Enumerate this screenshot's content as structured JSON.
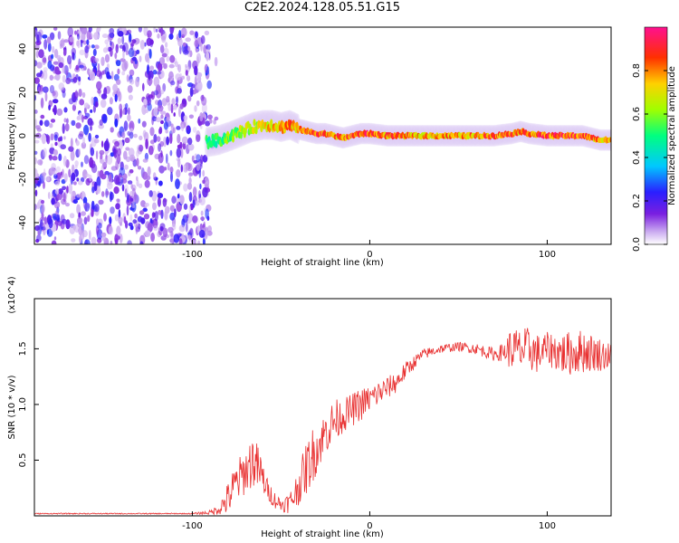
{
  "title": "C2E2.2024.128.05.51.G15",
  "chart_data": [
    {
      "type": "heatmap",
      "xlabel": "Height of straight line (km)",
      "ylabel": "Frequency (Hz)",
      "xlim": [
        -189,
        136
      ],
      "ylim": [
        -50,
        50
      ],
      "x_ticks": [
        -100,
        0,
        100
      ],
      "y_ticks": [
        -40,
        -20,
        0,
        20,
        40
      ],
      "grid": false,
      "colorbar": {
        "label": "Normalized spectral amplitude",
        "range": [
          0,
          1
        ],
        "ticks": [
          "0.0",
          "0.2",
          "0.4",
          "0.6",
          "0.8"
        ],
        "colors": [
          "#ffffff",
          "#c9a8f0",
          "#7a1fe0",
          "#2a1fff",
          "#00c8ff",
          "#00ff80",
          "#a0ff00",
          "#ffd000",
          "#ff3000",
          "#ff1090"
        ]
      },
      "noise_region_x": [
        -189,
        -90
      ],
      "ridge": {
        "x": [
          -92,
          -85,
          -78,
          -72,
          -66,
          -60,
          -55,
          -50,
          -45,
          -40,
          -35,
          -30,
          -25,
          -20,
          -15,
          -10,
          -5,
          0,
          10,
          20,
          30,
          40,
          50,
          60,
          70,
          80,
          85,
          90,
          100,
          110,
          120,
          125,
          130,
          136
        ],
        "freq": [
          -3,
          -2,
          0,
          2,
          4,
          5,
          5,
          4,
          5,
          3,
          2,
          1,
          1,
          0,
          -1,
          0,
          1,
          1,
          0,
          0,
          0,
          0,
          0,
          0,
          0,
          1,
          2,
          1,
          0,
          0,
          0,
          -1,
          -2,
          -2
        ],
        "amplitude": [
          0.55,
          0.6,
          0.65,
          0.7,
          0.72,
          0.75,
          0.8,
          0.82,
          0.85,
          0.85,
          0.88,
          0.9,
          0.9,
          0.92,
          0.9,
          0.92,
          0.93,
          0.95,
          0.9,
          0.88,
          0.85,
          0.85,
          0.85,
          0.88,
          0.9,
          0.92,
          0.9,
          0.92,
          0.95,
          0.95,
          0.93,
          0.9,
          0.88,
          0.85
        ]
      }
    },
    {
      "type": "line",
      "xlabel": "Height of straight line (km)",
      "ylabel": "SNR (10 * v/v)",
      "y_multiplier": "(x10^4)",
      "xlim": [
        -189,
        136
      ],
      "ylim": [
        0,
        1.95
      ],
      "x_ticks": [
        -100,
        0,
        100
      ],
      "y_ticks": [
        "0.5",
        "1.0",
        "1.5"
      ],
      "grid": false,
      "series": [
        {
          "color": "#e83030",
          "x": [
            -189,
            -150,
            -100,
            -90,
            -85,
            -80,
            -75,
            -70,
            -66,
            -62,
            -58,
            -54,
            -50,
            -45,
            -42,
            -38,
            -35,
            -32,
            -28,
            -25,
            -20,
            -15,
            -10,
            -5,
            0,
            5,
            10,
            15,
            20,
            25,
            30,
            40,
            50,
            60,
            70,
            75,
            80,
            85,
            90,
            95,
            100,
            110,
            120,
            130,
            136
          ],
          "base": [
            0.02,
            0.02,
            0.02,
            0.03,
            0.06,
            0.15,
            0.3,
            0.4,
            0.5,
            0.4,
            0.25,
            0.15,
            0.1,
            0.12,
            0.2,
            0.35,
            0.45,
            0.55,
            0.65,
            0.75,
            0.85,
            0.9,
            0.95,
            1.0,
            1.05,
            1.1,
            1.15,
            1.2,
            1.3,
            1.38,
            1.45,
            1.5,
            1.52,
            1.5,
            1.45,
            1.47,
            1.5,
            1.48,
            1.5,
            1.45,
            1.5,
            1.45,
            1.48,
            1.45,
            1.43
          ],
          "jitter": [
            0.005,
            0.005,
            0.005,
            0.02,
            0.05,
            0.15,
            0.2,
            0.2,
            0.25,
            0.2,
            0.1,
            0.08,
            0.06,
            0.1,
            0.15,
            0.2,
            0.25,
            0.25,
            0.2,
            0.2,
            0.2,
            0.15,
            0.15,
            0.15,
            0.12,
            0.12,
            0.1,
            0.1,
            0.08,
            0.06,
            0.05,
            0.04,
            0.04,
            0.05,
            0.06,
            0.08,
            0.2,
            0.2,
            0.2,
            0.18,
            0.15,
            0.2,
            0.2,
            0.15,
            0.12
          ]
        }
      ]
    }
  ]
}
